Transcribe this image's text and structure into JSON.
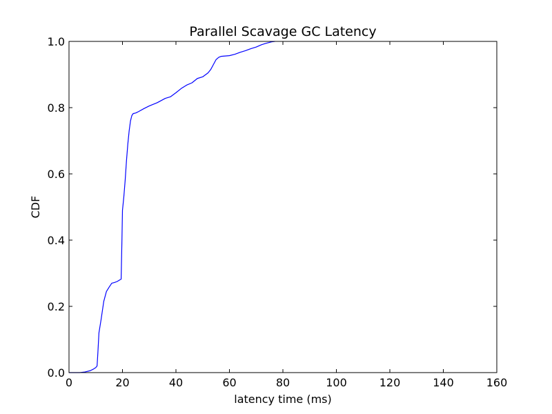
{
  "chart_data": {
    "type": "line",
    "title": "Parallel Scavage GC Latency",
    "xlabel": "latency time (ms)",
    "ylabel": "CDF",
    "xlim": [
      0,
      160
    ],
    "ylim": [
      0,
      1.0
    ],
    "x_ticks": [
      0,
      20,
      40,
      60,
      80,
      100,
      120,
      140,
      160
    ],
    "y_ticks": [
      0.0,
      0.2,
      0.4,
      0.6,
      0.8,
      1.0
    ],
    "x_tick_labels": [
      "0",
      "20",
      "40",
      "60",
      "80",
      "100",
      "120",
      "140",
      "160"
    ],
    "y_tick_labels": [
      "0.0",
      "0.2",
      "0.4",
      "0.6",
      "0.8",
      "1.0"
    ],
    "grid": false,
    "line_color": "#0000ff",
    "series": [
      {
        "x": [
          0,
          4,
          6,
          8,
          9,
          10,
          10.5,
          10.8,
          11.2,
          12,
          13,
          14,
          15,
          16,
          17,
          18,
          19,
          19.5,
          19.8,
          20,
          20.5,
          21,
          21.5,
          22,
          22.5,
          23,
          23.5,
          24,
          25,
          26,
          28,
          30,
          33,
          36,
          38,
          40,
          42,
          44,
          46,
          48,
          50,
          52,
          53,
          54,
          55,
          56,
          57,
          60,
          62,
          64,
          66,
          68,
          70,
          72,
          74,
          76,
          77
        ],
        "y": [
          0,
          0,
          0.002,
          0.006,
          0.01,
          0.015,
          0.02,
          0.06,
          0.12,
          0.16,
          0.215,
          0.245,
          0.258,
          0.27,
          0.272,
          0.275,
          0.28,
          0.282,
          0.4,
          0.49,
          0.53,
          0.58,
          0.64,
          0.69,
          0.73,
          0.76,
          0.776,
          0.782,
          0.784,
          0.788,
          0.797,
          0.805,
          0.815,
          0.828,
          0.833,
          0.845,
          0.858,
          0.868,
          0.875,
          0.888,
          0.893,
          0.905,
          0.915,
          0.93,
          0.945,
          0.952,
          0.955,
          0.957,
          0.961,
          0.967,
          0.972,
          0.978,
          0.983,
          0.99,
          0.995,
          0.999,
          1.0
        ]
      }
    ]
  }
}
